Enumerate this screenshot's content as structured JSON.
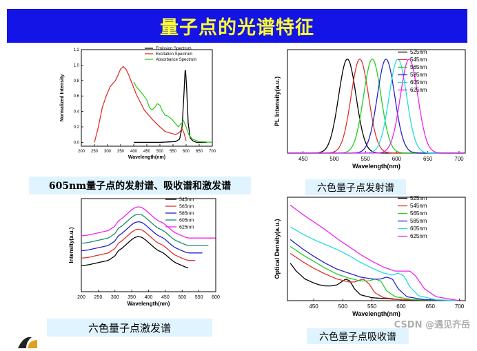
{
  "page": {
    "title": "量子点的光谱特征",
    "watermark": "CSDN @遇见齐岳"
  },
  "captions": [
    "605nm量子点的发射谱、吸收谱和激发谱",
    "六色量子点发射谱",
    "六色量子点激发谱",
    "六色量子点吸收谱"
  ],
  "chart_data": [
    {
      "type": "line",
      "xlabel": "Wavelength(nm)",
      "ylabel": "Normalized Intensity",
      "xlim": [
        200,
        700
      ],
      "ylim": [
        -0.05,
        1.2
      ],
      "xticks": [
        200,
        250,
        300,
        350,
        400,
        450,
        500,
        550,
        600,
        650,
        700
      ],
      "yticks": [
        0.0,
        0.2,
        0.4,
        0.6,
        0.8,
        1.0,
        1.2
      ],
      "ytick_labels": [
        "0.0",
        "0.2",
        "0.4",
        "0.6",
        "0.8",
        "1.0",
        "1.2"
      ],
      "legend_position": "top-right",
      "series": [
        {
          "name": "Emission Spectrum",
          "color": "#000000",
          "x": [
            400,
            500,
            560,
            575,
            585,
            592,
            597,
            602,
            608,
            615,
            625,
            640,
            680
          ],
          "y": [
            0.0,
            0.0,
            0.01,
            0.04,
            0.2,
            0.65,
            0.99,
            0.7,
            0.25,
            0.06,
            0.02,
            0.0,
            0.0
          ]
        },
        {
          "name": "Excitation Spectrum",
          "color": "#e0302a",
          "x": [
            250,
            265,
            280,
            295,
            310,
            320,
            330,
            340,
            350,
            360,
            370,
            380,
            395,
            410,
            425,
            440,
            455,
            470,
            485,
            500,
            520,
            540,
            560,
            575,
            585,
            592,
            600
          ],
          "y": [
            0.0,
            0.2,
            0.45,
            0.6,
            0.72,
            0.76,
            0.8,
            0.87,
            0.95,
            0.98,
            0.95,
            0.88,
            0.75,
            0.62,
            0.52,
            0.42,
            0.36,
            0.3,
            0.25,
            0.2,
            0.14,
            0.12,
            0.1,
            0.13,
            0.18,
            0.12,
            0.02
          ]
        },
        {
          "name": "Absorbance Spectrum",
          "color": "#33cc22",
          "x": [
            400,
            410,
            420,
            435,
            450,
            460,
            470,
            480,
            490,
            500,
            510,
            520,
            530,
            545,
            560,
            570,
            580,
            590,
            600,
            610,
            625,
            650,
            700
          ],
          "y": [
            0.78,
            0.72,
            0.68,
            0.62,
            0.55,
            0.45,
            0.42,
            0.45,
            0.5,
            0.48,
            0.4,
            0.35,
            0.34,
            0.3,
            0.24,
            0.2,
            0.24,
            0.28,
            0.2,
            0.1,
            0.04,
            0.01,
            0.0
          ]
        }
      ]
    },
    {
      "type": "line",
      "xlabel": "Wavelength(nm)",
      "ylabel": "PL Intensity(a.u.)",
      "xlim": [
        425,
        710
      ],
      "ylim": [
        0,
        1.1
      ],
      "xticks": [
        450,
        500,
        550,
        600,
        650,
        700
      ],
      "legend_position": "top-right",
      "peak_width_nm": 14,
      "series": [
        {
          "name": "525nm",
          "color": "#000000",
          "peak": 521
        },
        {
          "name": "545nm",
          "color": "#e0302a",
          "peak": 541
        },
        {
          "name": "565nm",
          "color": "#22cc22",
          "peak": 561
        },
        {
          "name": "585nm",
          "color": "#2020cc",
          "peak": 583
        },
        {
          "name": "605nm",
          "color": "#22dddd",
          "peak": 602
        },
        {
          "name": "625nm",
          "color": "#ee22ee",
          "peak": 620
        }
      ]
    },
    {
      "type": "line",
      "xlabel": "Wavelength(nm)",
      "ylabel": "Intensity(a.u.)",
      "xlim": [
        200,
        600
      ],
      "ylim": [
        0,
        1.25
      ],
      "xticks": [
        200,
        250,
        300,
        350,
        400,
        450,
        500,
        550,
        600
      ],
      "legend_position": "top-right",
      "series": [
        {
          "name": "545nm",
          "color": "#000000",
          "offset": 0.0,
          "end": 520
        },
        {
          "name": "565nm",
          "color": "#e0302a",
          "offset": 0.1,
          "end": 540
        },
        {
          "name": "585nm",
          "color": "#2020cc",
          "offset": 0.2,
          "end": 560
        },
        {
          "name": "605nm",
          "color": "#1a8a6a",
          "offset": 0.3,
          "end": 580
        },
        {
          "name": "625nm",
          "color": "#ee22ee",
          "offset": 0.4,
          "end": 600
        }
      ],
      "base_shape": {
        "x": [
          200,
          220,
          240,
          260,
          280,
          300,
          310,
          320,
          330,
          340,
          350,
          360,
          370,
          380,
          390,
          400,
          410,
          420,
          430,
          440,
          450,
          460,
          470,
          480,
          490,
          500,
          510,
          520,
          540,
          560,
          580,
          600
        ],
        "y": [
          0.35,
          0.36,
          0.38,
          0.4,
          0.42,
          0.48,
          0.55,
          0.58,
          0.62,
          0.66,
          0.7,
          0.73,
          0.74,
          0.73,
          0.7,
          0.66,
          0.62,
          0.58,
          0.55,
          0.53,
          0.5,
          0.46,
          0.42,
          0.39,
          0.37,
          0.35,
          0.33,
          0.32,
          0.32,
          0.32,
          0.32,
          0.32
        ]
      }
    },
    {
      "type": "line",
      "xlabel": "Wavelength(nm)",
      "ylabel": "Optical Density(a.u.)",
      "xlim": [
        405,
        710
      ],
      "ylim": [
        0,
        1.05
      ],
      "xticks": [
        450,
        500,
        550,
        600,
        650,
        700
      ],
      "legend_position": "top-right",
      "series": [
        {
          "name": "525nm",
          "color": "#000000",
          "x": [
            410,
            420,
            435,
            450,
            460,
            470,
            480,
            490,
            500,
            505,
            512,
            520,
            530,
            550,
            600,
            700
          ],
          "y": [
            0.38,
            0.3,
            0.22,
            0.18,
            0.16,
            0.15,
            0.15,
            0.16,
            0.2,
            0.22,
            0.2,
            0.12,
            0.06,
            0.03,
            0.01,
            0.0
          ]
        },
        {
          "name": "545nm",
          "color": "#e0302a",
          "x": [
            410,
            430,
            450,
            470,
            490,
            510,
            520,
            530,
            535,
            545,
            555,
            570,
            600,
            700
          ],
          "y": [
            0.48,
            0.4,
            0.33,
            0.27,
            0.22,
            0.19,
            0.19,
            0.21,
            0.22,
            0.17,
            0.08,
            0.03,
            0.01,
            0.0
          ]
        },
        {
          "name": "565nm",
          "color": "#22cc22",
          "x": [
            410,
            430,
            450,
            470,
            490,
            510,
            530,
            545,
            555,
            565,
            575,
            590,
            620,
            700
          ],
          "y": [
            0.55,
            0.47,
            0.4,
            0.33,
            0.27,
            0.23,
            0.2,
            0.2,
            0.22,
            0.2,
            0.1,
            0.04,
            0.01,
            0.0
          ]
        },
        {
          "name": "585nm",
          "color": "#2020cc",
          "x": [
            410,
            430,
            450,
            470,
            490,
            510,
            530,
            550,
            565,
            575,
            585,
            595,
            610,
            640,
            700
          ],
          "y": [
            0.62,
            0.53,
            0.45,
            0.38,
            0.32,
            0.28,
            0.24,
            0.22,
            0.22,
            0.24,
            0.22,
            0.12,
            0.04,
            0.01,
            0.0
          ]
        },
        {
          "name": "605nm",
          "color": "#22dddd",
          "x": [
            410,
            430,
            450,
            470,
            490,
            510,
            530,
            550,
            570,
            585,
            595,
            605,
            615,
            630,
            660,
            700
          ],
          "y": [
            0.75,
            0.68,
            0.62,
            0.57,
            0.52,
            0.46,
            0.39,
            0.33,
            0.28,
            0.26,
            0.28,
            0.25,
            0.14,
            0.05,
            0.01,
            0.0
          ]
        },
        {
          "name": "625nm",
          "color": "#ee22ee",
          "x": [
            410,
            430,
            450,
            470,
            490,
            510,
            530,
            550,
            570,
            590,
            605,
            615,
            625,
            640,
            660,
            690,
            700
          ],
          "y": [
            0.97,
            0.88,
            0.8,
            0.72,
            0.63,
            0.55,
            0.47,
            0.4,
            0.34,
            0.3,
            0.3,
            0.3,
            0.25,
            0.12,
            0.04,
            0.01,
            0.0
          ]
        }
      ]
    }
  ]
}
